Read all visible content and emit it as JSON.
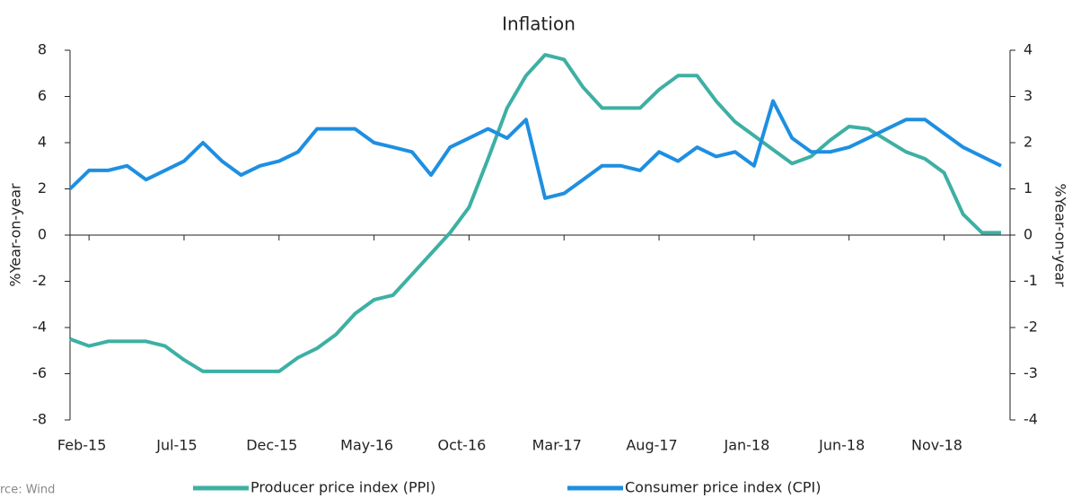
{
  "chart_data": {
    "type": "line",
    "title": "Inflation",
    "categories": [
      null,
      "Feb-15",
      null,
      null,
      null,
      null,
      "Jul-15",
      null,
      null,
      null,
      null,
      "Dec-15",
      null,
      null,
      null,
      null,
      "May-16",
      null,
      null,
      null,
      null,
      "Oct-16",
      null,
      null,
      null,
      null,
      "Mar-17",
      null,
      null,
      null,
      null,
      "Aug-17",
      null,
      null,
      null,
      null,
      "Jan-18",
      null,
      null,
      null,
      null,
      "Jun-18",
      null,
      null,
      null,
      null,
      "Nov-18",
      null,
      null,
      null
    ],
    "series": [
      {
        "name": "Producer price index (PPI)",
        "color": "#3db0a3",
        "axis": "y",
        "values": [
          -4.5,
          -4.8,
          -4.6,
          -4.6,
          -4.6,
          -4.8,
          -5.4,
          -5.9,
          -5.9,
          -5.9,
          -5.9,
          -5.9,
          -5.3,
          -4.9,
          -4.3,
          -3.4,
          -2.8,
          -2.6,
          -1.7,
          -0.8,
          0.1,
          1.2,
          3.3,
          5.5,
          6.9,
          7.8,
          7.6,
          6.4,
          5.5,
          5.5,
          5.5,
          6.3,
          6.9,
          6.9,
          5.8,
          4.9,
          4.3,
          3.7,
          3.1,
          3.4,
          4.1,
          4.7,
          4.6,
          4.1,
          3.6,
          3.3,
          2.7,
          0.9,
          0.1,
          0.1
        ]
      },
      {
        "name": "Consumer price index (CPI)",
        "color": "#1e8fe1",
        "axis": "y2",
        "values": [
          1.0,
          1.4,
          1.4,
          1.5,
          1.2,
          1.4,
          1.6,
          2.0,
          1.6,
          1.3,
          1.5,
          1.6,
          1.8,
          2.3,
          2.3,
          2.3,
          2.0,
          1.9,
          1.8,
          1.3,
          1.9,
          2.1,
          2.3,
          2.1,
          2.5,
          0.8,
          0.9,
          1.2,
          1.5,
          1.5,
          1.4,
          1.8,
          1.6,
          1.9,
          1.7,
          1.8,
          1.5,
          2.9,
          2.1,
          1.8,
          1.8,
          1.9,
          2.1,
          2.3,
          2.5,
          2.5,
          2.2,
          1.9,
          1.7,
          1.5
        ]
      }
    ],
    "ylabel": "%Year-on-year",
    "y2label": "%Year-on-year",
    "ylim": [
      -8,
      8
    ],
    "yticks": [
      -8,
      -6,
      -4,
      -2,
      0,
      2,
      4,
      6,
      8
    ],
    "y2lim": [
      -4,
      4
    ],
    "y2ticks": [
      -4,
      -3,
      -2,
      -1,
      0,
      1,
      2,
      3,
      4
    ],
    "source": "rce: Wind",
    "legend": "bottom"
  }
}
